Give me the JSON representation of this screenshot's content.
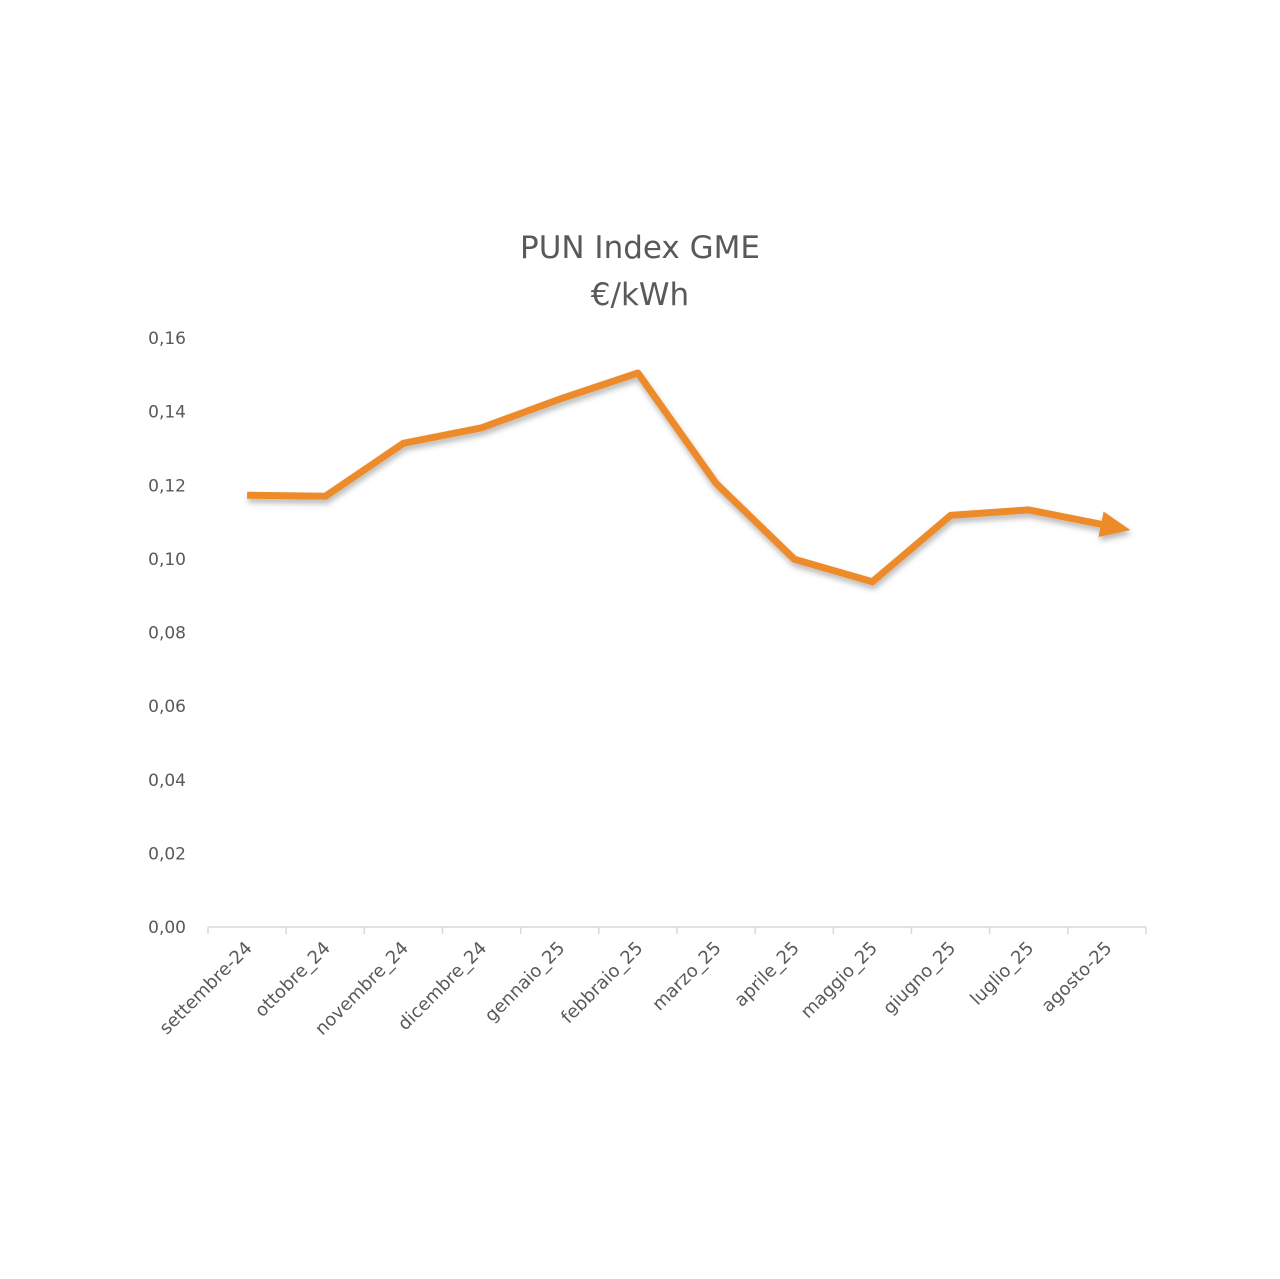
{
  "chart_data": {
    "type": "line",
    "title": [
      "PUN Index GME",
      "€/kWh"
    ],
    "categories": [
      "settembre-24",
      "ottobre_24",
      "novembre_24",
      "dicembre_24",
      "gennaio_25",
      "febbraio_25",
      "marzo_25",
      "aprile_25",
      "maggio_25",
      "giugno_25",
      "luglio_25",
      "agosto-25"
    ],
    "series": [
      {
        "values": [
          0.1173,
          0.117,
          0.1314,
          0.1356,
          0.1434,
          0.1505,
          0.1205,
          0.0999,
          0.0938,
          0.1118,
          0.1133,
          0.1091
        ]
      }
    ],
    "y_ticks": [
      "0,16",
      "0,14",
      "0,12",
      "0,10",
      "0,08",
      "0,06",
      "0,04",
      "0,02",
      "0,00"
    ],
    "ylim": [
      0,
      0.16
    ],
    "grid": false,
    "legend": "none",
    "line_end": "arrow",
    "colors": {
      "series": "#ed8b2a",
      "text": "#595959",
      "axis": "#d9d9d9"
    }
  }
}
